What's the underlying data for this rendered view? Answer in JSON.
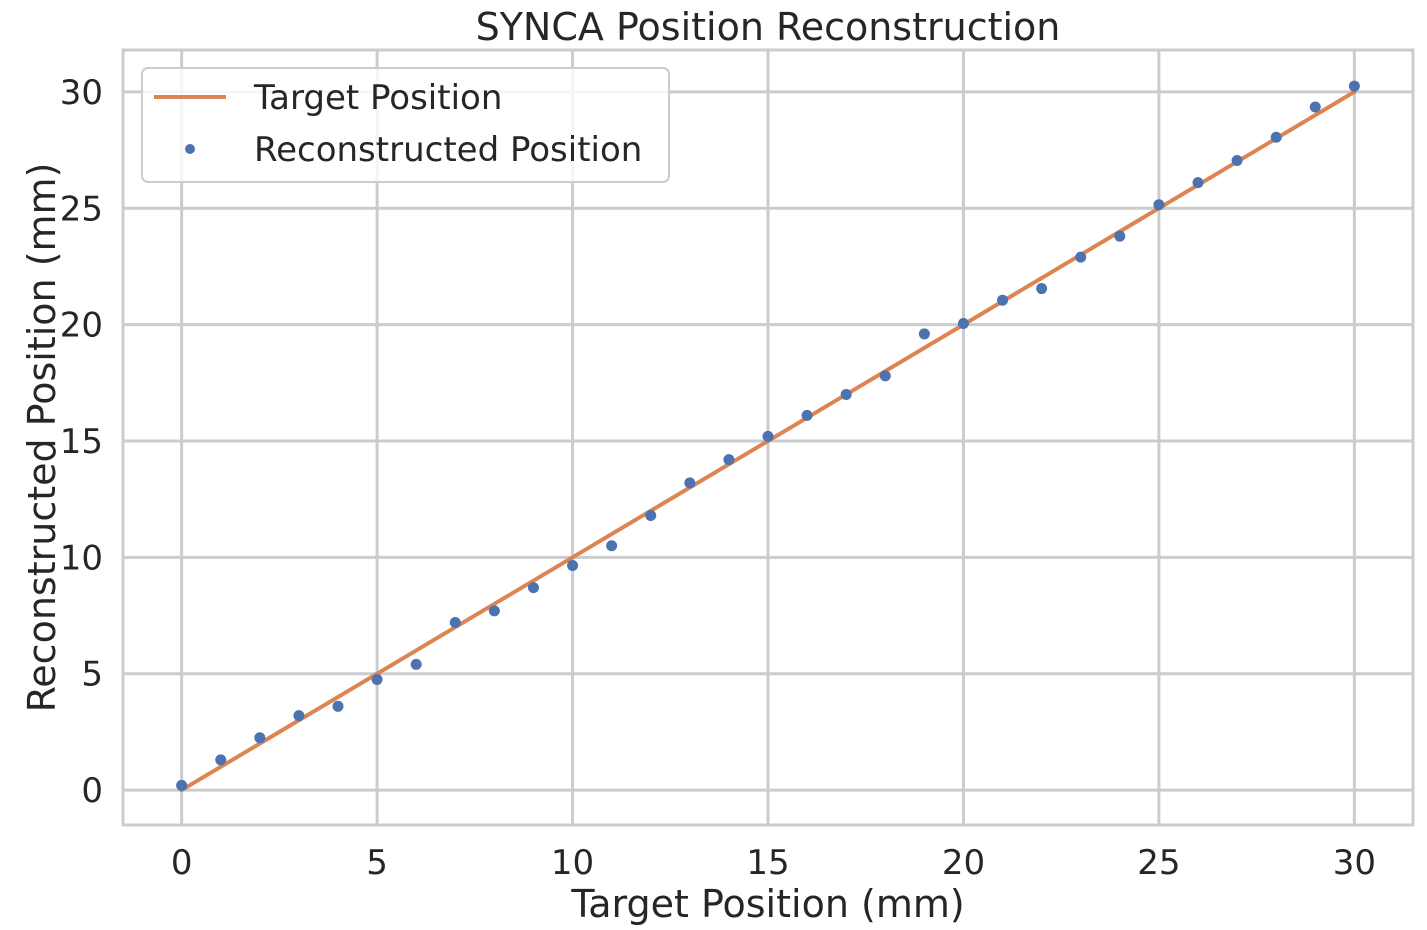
{
  "chart_data": {
    "type": "scatter",
    "title": "SYNCA Position Reconstruction",
    "xlabel": "Target Position (mm)",
    "ylabel": "Reconstructed Position (mm)",
    "xlim": [
      -1.5,
      31.5
    ],
    "ylim": [
      -1.5,
      31.8
    ],
    "xticks": [
      0,
      5,
      10,
      15,
      20,
      25,
      30
    ],
    "yticks": [
      0,
      5,
      10,
      15,
      20,
      25,
      30
    ],
    "grid": true,
    "legend_position": "upper-left",
    "series": [
      {
        "name": "Target Position",
        "kind": "line",
        "color": "#dd8452",
        "x": [
          0,
          30
        ],
        "y": [
          0,
          30
        ]
      },
      {
        "name": "Reconstructed Position",
        "kind": "points",
        "color": "#4c72b0",
        "x": [
          0,
          1,
          2,
          3,
          4,
          5,
          6,
          7,
          8,
          9,
          10,
          11,
          12,
          13,
          14,
          15,
          16,
          17,
          18,
          19,
          20,
          21,
          22,
          23,
          24,
          25,
          26,
          27,
          28,
          29,
          30
        ],
        "y": [
          0.2,
          1.3,
          2.25,
          3.2,
          3.6,
          4.75,
          5.4,
          7.2,
          7.7,
          8.7,
          9.65,
          10.5,
          11.8,
          13.2,
          14.2,
          15.2,
          16.1,
          17.0,
          17.8,
          19.6,
          20.05,
          21.05,
          21.55,
          22.9,
          23.8,
          25.15,
          26.1,
          27.05,
          28.05,
          29.35,
          30.25
        ]
      }
    ]
  }
}
